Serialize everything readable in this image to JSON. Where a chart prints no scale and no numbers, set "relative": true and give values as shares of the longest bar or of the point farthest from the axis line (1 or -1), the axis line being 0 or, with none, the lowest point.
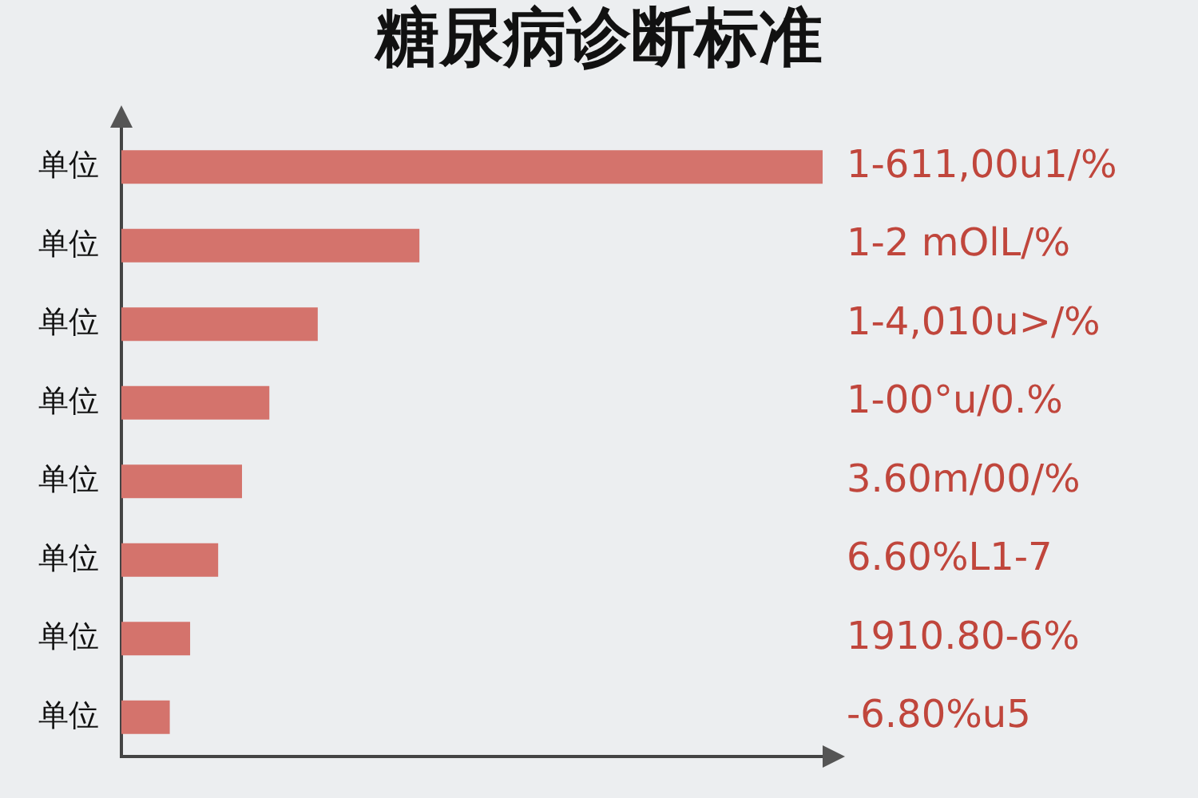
{
  "chart_data": {
    "type": "bar",
    "orientation": "horizontal",
    "relative": true,
    "title": "糖尿病诊断标准",
    "categories": [
      "单位",
      "单位",
      "单位",
      "单位",
      "单位",
      "单位",
      "单位",
      "单位"
    ],
    "values": [
      1,
      0.425,
      0.28,
      0.211,
      0.172,
      0.138,
      0.098,
      0.069
    ],
    "annotations": [
      "1-611,00u1/%",
      "1-2 mOlL/%",
      "1-4,010u>/%",
      "1-00°u/0.%",
      "3.60m/00/%",
      "6.60%L1-7",
      "1910.80-6%",
      "-6.80%u5"
    ],
    "color": "#d4736c",
    "legend": false,
    "grid": false
  }
}
